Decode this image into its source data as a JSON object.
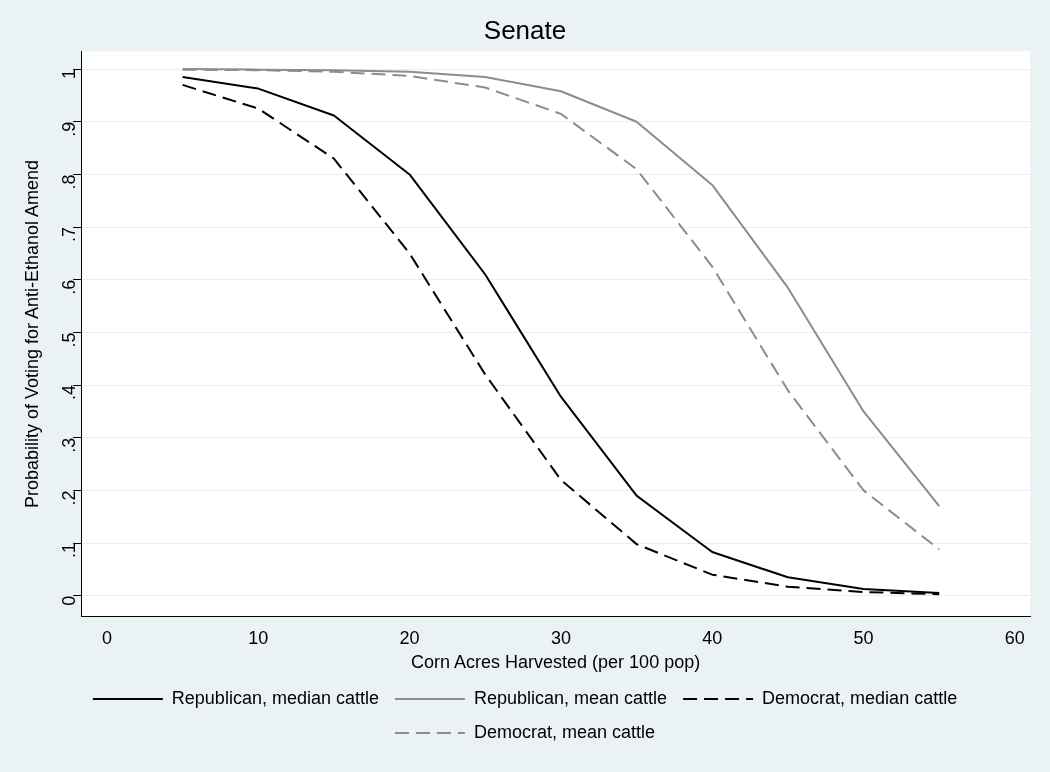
{
  "chart_data": {
    "type": "line",
    "title": "Senate",
    "xlabel": "Corn Acres Harvested (per 100 pop)",
    "ylabel": "Probability of Voting for Anti-Ethanol Amend",
    "x": [
      5,
      10,
      15,
      20,
      25,
      30,
      35,
      40,
      45,
      50,
      55
    ],
    "series": [
      {
        "name": "Republican, median cattle",
        "color": "#000000",
        "line_style": "solid",
        "values": [
          0.985,
          0.963,
          0.912,
          0.8,
          0.61,
          0.378,
          0.19,
          0.083,
          0.035,
          0.013,
          0.005
        ]
      },
      {
        "name": "Republican, mean cattle",
        "color": "#8c8c8c",
        "line_style": "solid",
        "values": [
          1.0,
          0.999,
          0.998,
          0.995,
          0.985,
          0.958,
          0.9,
          0.78,
          0.585,
          0.35,
          0.17
        ]
      },
      {
        "name": "Democrat, median cattle",
        "color": "#000000",
        "line_style": "dashed",
        "values": [
          0.97,
          0.925,
          0.83,
          0.65,
          0.42,
          0.22,
          0.098,
          0.04,
          0.017,
          0.007,
          0.003
        ]
      },
      {
        "name": "Democrat, mean cattle",
        "color": "#8c8c8c",
        "line_style": "dashed",
        "values": [
          0.999,
          0.998,
          0.995,
          0.987,
          0.965,
          0.915,
          0.81,
          0.625,
          0.39,
          0.2,
          0.088
        ]
      }
    ],
    "xlim": [
      -1.7,
      61
    ],
    "xticks": [
      0,
      10,
      20,
      30,
      40,
      50,
      60
    ],
    "ylim": [
      -0.04,
      1.034
    ],
    "yticks": [
      0,
      {
        "value": 0.1,
        "label": ".1"
      },
      {
        "value": 0.2,
        "label": ".2"
      },
      {
        "value": 0.3,
        "label": ".3"
      },
      {
        "value": 0.4,
        "label": ".4"
      },
      {
        "value": 0.5,
        "label": ".5"
      },
      {
        "value": 0.6,
        "label": ".6"
      },
      {
        "value": 0.7,
        "label": ".7"
      },
      {
        "value": 0.8,
        "label": ".8"
      },
      {
        "value": 0.9,
        "label": ".9"
      },
      1
    ],
    "grid": "y",
    "legend": "bottom",
    "marker": "none"
  }
}
